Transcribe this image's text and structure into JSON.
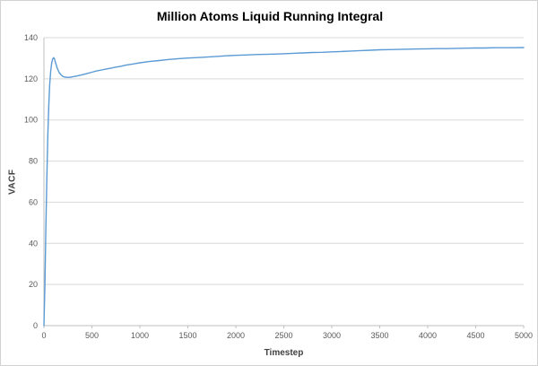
{
  "chart_data": {
    "type": "line",
    "title": "Million Atoms Liquid Running Integral",
    "xlabel": "Timestep",
    "ylabel": "VACF",
    "xlim": [
      0,
      5000
    ],
    "ylim": [
      0,
      140
    ],
    "x_ticks": [
      0,
      500,
      1000,
      1500,
      2000,
      2500,
      3000,
      3500,
      4000,
      4500,
      5000
    ],
    "y_ticks": [
      0,
      20,
      40,
      60,
      80,
      100,
      120,
      140
    ],
    "grid": "horizontal",
    "legend_position": "none",
    "grid_color": "#d9d9d9",
    "axis_color": "#bfbfbf",
    "series": [
      {
        "color": "#5b9bd5",
        "points": [
          [
            0,
            0
          ],
          [
            10,
            20
          ],
          [
            20,
            46
          ],
          [
            30,
            71
          ],
          [
            40,
            92
          ],
          [
            50,
            107
          ],
          [
            60,
            117
          ],
          [
            70,
            123.5
          ],
          [
            80,
            127.5
          ],
          [
            90,
            129.5
          ],
          [
            100,
            130.3
          ],
          [
            110,
            129.6
          ],
          [
            120,
            128
          ],
          [
            140,
            125
          ],
          [
            160,
            123
          ],
          [
            180,
            121.8
          ],
          [
            200,
            121.1
          ],
          [
            220,
            120.8
          ],
          [
            250,
            120.7
          ],
          [
            280,
            120.8
          ],
          [
            300,
            121
          ],
          [
            350,
            121.4
          ],
          [
            400,
            122
          ],
          [
            450,
            122.6
          ],
          [
            500,
            123.2
          ],
          [
            550,
            123.8
          ],
          [
            600,
            124.3
          ],
          [
            650,
            124.8
          ],
          [
            700,
            125.2
          ],
          [
            750,
            125.7
          ],
          [
            800,
            126.1
          ],
          [
            850,
            126.6
          ],
          [
            900,
            127
          ],
          [
            950,
            127.4
          ],
          [
            1000,
            127.8
          ],
          [
            1100,
            128.4
          ],
          [
            1200,
            128.9
          ],
          [
            1300,
            129.4
          ],
          [
            1400,
            129.8
          ],
          [
            1500,
            130.1
          ],
          [
            1600,
            130.3
          ],
          [
            1700,
            130.6
          ],
          [
            1800,
            130.9
          ],
          [
            1900,
            131.2
          ],
          [
            2000,
            131.4
          ],
          [
            2100,
            131.6
          ],
          [
            2200,
            131.8
          ],
          [
            2300,
            131.9
          ],
          [
            2400,
            132
          ],
          [
            2500,
            132.2
          ],
          [
            2600,
            132.4
          ],
          [
            2700,
            132.6
          ],
          [
            2800,
            132.8
          ],
          [
            2900,
            132.9
          ],
          [
            3000,
            133.1
          ],
          [
            3100,
            133.3
          ],
          [
            3200,
            133.5
          ],
          [
            3300,
            133.7
          ],
          [
            3400,
            133.9
          ],
          [
            3500,
            134.1
          ],
          [
            3600,
            134.2
          ],
          [
            3700,
            134.3
          ],
          [
            3800,
            134.4
          ],
          [
            3900,
            134.5
          ],
          [
            4000,
            134.6
          ],
          [
            4100,
            134.7
          ],
          [
            4200,
            134.7
          ],
          [
            4300,
            134.8
          ],
          [
            4400,
            134.9
          ],
          [
            4500,
            135
          ],
          [
            4600,
            135
          ],
          [
            4700,
            135.1
          ],
          [
            4800,
            135.1
          ],
          [
            4900,
            135.1
          ],
          [
            5000,
            135.2
          ]
        ]
      }
    ]
  }
}
